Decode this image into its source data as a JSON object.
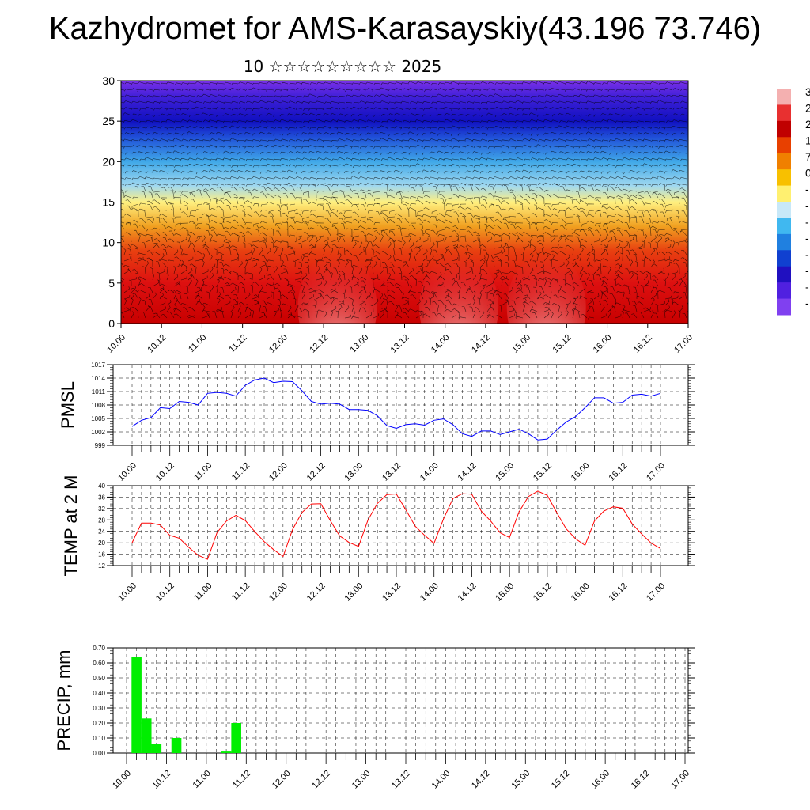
{
  "page": {
    "title": "Kazhydromet for AMS-Karasayskiy(43.196 73.746)",
    "subtitle": "10 ☆☆☆☆☆☆☆☆☆ 2025"
  },
  "colorbar": {
    "labels": [
      "3",
      "2",
      "2",
      "1",
      "7",
      "0",
      "-",
      "-",
      "-",
      "-",
      "-",
      "-",
      "-",
      "-"
    ],
    "colors": [
      "#f4b0b0",
      "#e83030",
      "#c00000",
      "#e84000",
      "#f08000",
      "#f8c000",
      "#fff070",
      "#c8e8f8",
      "#40b8f0",
      "#2080e0",
      "#1040d0",
      "#2010c0",
      "#5020e0",
      "#8040f0"
    ]
  },
  "chart_data": [
    {
      "id": "cross-section",
      "type": "heatmap",
      "title": "",
      "ylabel": "",
      "ylim": [
        0,
        30
      ],
      "yticks": [
        "0",
        "5",
        "10",
        "15",
        "20",
        "25",
        "30"
      ],
      "x_labels": [
        "10.00",
        "10.12",
        "11.00",
        "11.12",
        "12.00",
        "12.12",
        "13.00",
        "13.12",
        "14.00",
        "14.12",
        "15.00",
        "15.12",
        "16.00",
        "16.12",
        "17.00"
      ],
      "color_by_level": [
        {
          "level": 0,
          "color": "#c80000"
        },
        {
          "level": 5,
          "color": "#dd1010"
        },
        {
          "level": 9,
          "color": "#e84010"
        },
        {
          "level": 12,
          "color": "#f0a020"
        },
        {
          "level": 15,
          "color": "#fff080"
        },
        {
          "level": 17,
          "color": "#a0d8f0"
        },
        {
          "level": 20,
          "color": "#40a8e8"
        },
        {
          "level": 23,
          "color": "#2050d8"
        },
        {
          "level": 25,
          "color": "#1010c0"
        },
        {
          "level": 28,
          "color": "#4020d8"
        },
        {
          "level": 30,
          "color": "#7a30e8"
        }
      ],
      "warm_spots": [
        {
          "x": 12.67,
          "level": 2
        },
        {
          "x": 14.17,
          "level": 2
        },
        {
          "x": 15.25,
          "level": 2
        }
      ]
    },
    {
      "id": "pmsl",
      "type": "line",
      "ylabel": "PMSL",
      "ylim": [
        999,
        1017
      ],
      "yticks": [
        "999",
        "1002",
        "1005",
        "1008",
        "1011",
        "1014",
        "1017"
      ],
      "x_labels": [
        "10.00",
        "10.12",
        "11.00",
        "11.12",
        "12.00",
        "12.12",
        "13.00",
        "13.12",
        "14.00",
        "14.12",
        "15.00",
        "15.12",
        "16.00",
        "16.12",
        "17.00"
      ],
      "color": "#0000ff",
      "x": [
        10.0,
        10.125,
        10.25,
        10.375,
        10.5,
        10.625,
        10.75,
        10.875,
        11.0,
        11.125,
        11.25,
        11.375,
        11.5,
        11.625,
        11.75,
        11.875,
        12.0,
        12.125,
        12.25,
        12.375,
        12.5,
        12.625,
        12.75,
        12.875,
        13.0,
        13.125,
        13.25,
        13.375,
        13.5,
        13.625,
        13.75,
        13.875,
        14.0,
        14.125,
        14.25,
        14.375,
        14.5,
        14.625,
        14.75,
        14.875,
        15.0,
        15.125,
        15.25,
        15.375,
        15.5,
        15.625,
        15.75,
        15.875,
        16.0,
        16.125,
        16.25,
        16.375,
        16.5,
        16.625,
        16.75,
        16.875,
        17.0
      ],
      "y": [
        1003.2,
        1004.6,
        1005.2,
        1007.4,
        1007.2,
        1008.8,
        1008.6,
        1008.0,
        1010.6,
        1010.8,
        1010.6,
        1010.0,
        1012.4,
        1013.6,
        1014.0,
        1013.0,
        1013.3,
        1013.2,
        1011.2,
        1008.8,
        1008.2,
        1008.4,
        1008.2,
        1007.0,
        1007.0,
        1006.8,
        1005.6,
        1003.4,
        1002.8,
        1003.6,
        1003.8,
        1003.5,
        1004.6,
        1004.9,
        1003.6,
        1001.6,
        1001.0,
        1002.2,
        1002.2,
        1001.4,
        1002.0,
        1002.6,
        1001.6,
        1000.2,
        1000.4,
        1002.4,
        1004.2,
        1005.4,
        1007.4,
        1009.6,
        1009.6,
        1008.4,
        1008.6,
        1010.2,
        1010.4,
        1010.0,
        1010.6
      ]
    },
    {
      "id": "temp",
      "type": "line",
      "ylabel": "TEMP at 2 M",
      "ylim": [
        12,
        40
      ],
      "yticks": [
        "12",
        "16",
        "20",
        "24",
        "28",
        "32",
        "36",
        "40"
      ],
      "x_labels": [
        "10.00",
        "10.12",
        "11.00",
        "11.12",
        "12.00",
        "12.12",
        "13.00",
        "13.12",
        "14.00",
        "14.12",
        "15.00",
        "15.12",
        "16.00",
        "16.12",
        "17.00"
      ],
      "color": "#ff0000",
      "x": [
        10.0,
        10.125,
        10.25,
        10.375,
        10.5,
        10.625,
        10.75,
        10.875,
        11.0,
        11.125,
        11.25,
        11.375,
        11.5,
        11.625,
        11.75,
        11.875,
        12.0,
        12.125,
        12.25,
        12.375,
        12.5,
        12.625,
        12.75,
        12.875,
        13.0,
        13.125,
        13.25,
        13.375,
        13.5,
        13.625,
        13.75,
        13.875,
        14.0,
        14.125,
        14.25,
        14.375,
        14.5,
        14.625,
        14.75,
        14.875,
        15.0,
        15.125,
        15.25,
        15.375,
        15.5,
        15.625,
        15.75,
        15.875,
        16.0,
        16.125,
        16.25,
        16.375,
        16.5,
        16.625,
        16.75,
        16.875,
        17.0
      ],
      "y": [
        20.0,
        26.9,
        26.9,
        26.2,
        22.6,
        21.6,
        18.4,
        15.6,
        14.2,
        23.6,
        27.6,
        29.6,
        27.8,
        23.9,
        20.4,
        17.6,
        15.2,
        24.6,
        30.6,
        33.6,
        33.7,
        27.8,
        22.4,
        20.1,
        18.7,
        28.0,
        33.8,
        36.9,
        37.1,
        31.6,
        25.8,
        22.6,
        19.8,
        28.3,
        35.5,
        37.2,
        37.0,
        31.1,
        27.6,
        23.5,
        21.8,
        30.8,
        36.2,
        38.1,
        36.6,
        30.6,
        24.9,
        21.4,
        19.1,
        27.6,
        31.1,
        32.6,
        32.1,
        26.6,
        23.1,
        19.9,
        18.0
      ]
    },
    {
      "id": "precip",
      "type": "bar",
      "ylabel": "PRECIP, mm",
      "ylim": [
        0,
        0.7
      ],
      "yticks": [
        "0.00",
        "0.10",
        "0.20",
        "0.30",
        "0.40",
        "0.50",
        "0.60",
        "0.70"
      ],
      "x_labels": [
        "10.00",
        "10.12",
        "11.00",
        "11.12",
        "12.00",
        "12.12",
        "13.00",
        "13.12",
        "14.00",
        "14.12",
        "15.00",
        "15.12",
        "16.00",
        "16.12",
        "17.00"
      ],
      "color": "#00ee00",
      "bars": [
        {
          "x": 10.125,
          "value": 0.64
        },
        {
          "x": 10.25,
          "value": 0.23
        },
        {
          "x": 10.375,
          "value": 0.06
        },
        {
          "x": 10.625,
          "value": 0.1
        },
        {
          "x": 11.25,
          "value": 0.01
        },
        {
          "x": 11.375,
          "value": 0.2
        }
      ]
    }
  ]
}
